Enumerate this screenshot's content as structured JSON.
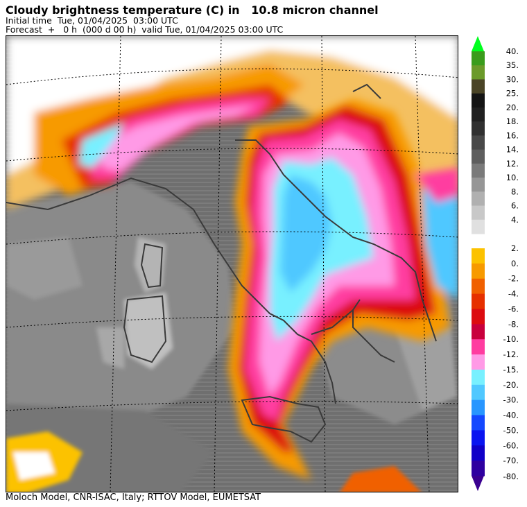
{
  "header": {
    "title": "Cloudy brightness temperature (C) in   10.8 micron channel",
    "initial_time": "Initial time  Tue, 01/04/2025  03:00 UTC",
    "forecast": "Forecast  +   0 h  (000 d 00 h)  valid Tue, 01/04/2025 03:00 UTC"
  },
  "footer": {
    "credits": "Moloch Model, CNR-ISAC, Italy; RTTOV Model, EUMETSAT"
  },
  "legend": {
    "upper": [
      {
        "label": "40.",
        "color": "#3a9c1c"
      },
      {
        "label": "35.",
        "color": "#6b9a2a"
      },
      {
        "label": "30.",
        "color": "#4a4426"
      },
      {
        "label": "25.",
        "color": "#141414"
      },
      {
        "label": "20.",
        "color": "#202020"
      },
      {
        "label": "18.",
        "color": "#303030"
      },
      {
        "label": "16.",
        "color": "#484848"
      },
      {
        "label": "14.",
        "color": "#5e5e5e"
      },
      {
        "label": "12.",
        "color": "#7a7a7a"
      },
      {
        "label": "10.",
        "color": "#969696"
      },
      {
        "label": "8.",
        "color": "#b0b0b0"
      },
      {
        "label": "6.",
        "color": "#c8c8c8"
      },
      {
        "label": "4.",
        "color": "#e0e0e0"
      }
    ],
    "lower": [
      {
        "label": "2.",
        "color": "#fcc200"
      },
      {
        "label": "0.",
        "color": "#f79a00"
      },
      {
        "label": "-2.",
        "color": "#f06000"
      },
      {
        "label": "-4.",
        "color": "#e63000"
      },
      {
        "label": "-6.",
        "color": "#dc0c10"
      },
      {
        "label": "-8.",
        "color": "#c8003c"
      },
      {
        "label": "-10.",
        "color": "#ff3ca0"
      },
      {
        "label": "-12.",
        "color": "#ff9ae6"
      },
      {
        "label": "-15.",
        "color": "#78f0ff"
      },
      {
        "label": "-20.",
        "color": "#50c8ff"
      },
      {
        "label": "-30.",
        "color": "#2896ff"
      },
      {
        "label": "-40.",
        "color": "#1448ff"
      },
      {
        "label": "-50.",
        "color": "#0a14f0"
      },
      {
        "label": "-60.",
        "color": "#1000c8"
      },
      {
        "label": "-70.",
        "color": "#2e00a0"
      }
    ],
    "bottom_label": "-80.",
    "top_arrow_color": "#00ff1e",
    "bottom_arrow_color": "#3a0090"
  }
}
